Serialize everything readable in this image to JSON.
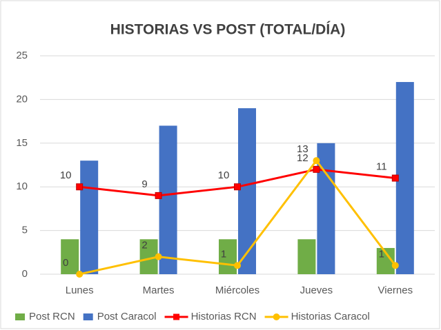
{
  "chart_data": {
    "type": "bar",
    "title": "HISTORIAS VS POST (TOTAL/DÍA)",
    "categories": [
      "Lunes",
      "Martes",
      "Miércoles",
      "Jueves",
      "Viernes"
    ],
    "series": [
      {
        "name": "Post RCN",
        "type": "bar",
        "color": "#70ad47",
        "values": [
          4,
          4,
          4,
          4,
          3
        ]
      },
      {
        "name": "Post Caracol",
        "type": "bar",
        "color": "#4472c4",
        "values": [
          13,
          17,
          19,
          15,
          22
        ]
      },
      {
        "name": "Historias RCN",
        "type": "line",
        "color": "#ff0000",
        "values": [
          10,
          9,
          10,
          12,
          11
        ]
      },
      {
        "name": "Historias Caracol",
        "type": "line",
        "color": "#ffc000",
        "values": [
          0,
          2,
          1,
          13,
          1
        ]
      }
    ],
    "ylim": [
      0,
      25
    ],
    "yticks": [
      0,
      5,
      10,
      15,
      20,
      25
    ],
    "grid": true,
    "legend": "bottom"
  }
}
